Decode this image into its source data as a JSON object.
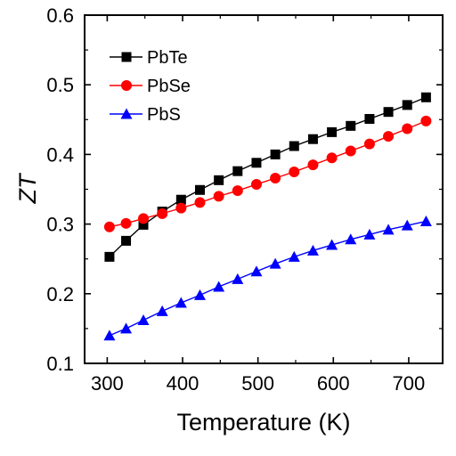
{
  "chart_data": {
    "type": "line",
    "xlabel": "Temperature (K)",
    "ylabel": "ZT",
    "xlim": [
      270,
      745
    ],
    "ylim": [
      0.1,
      0.6
    ],
    "xticks": [
      "300",
      "400",
      "500",
      "600",
      "700"
    ],
    "yticks": [
      "0.1",
      "0.2",
      "0.3",
      "0.4",
      "0.5",
      "0.6"
    ],
    "grid": false,
    "legend_position": "top-left",
    "x": [
      303,
      325,
      348,
      373,
      398,
      423,
      448,
      473,
      498,
      523,
      548,
      573,
      598,
      623,
      648,
      673,
      698,
      723
    ],
    "series": [
      {
        "name": "PbTe",
        "marker": "square",
        "color": "#000000",
        "values": [
          0.253,
          0.276,
          0.299,
          0.318,
          0.335,
          0.349,
          0.363,
          0.376,
          0.388,
          0.4,
          0.412,
          0.422,
          0.432,
          0.441,
          0.451,
          0.461,
          0.471,
          0.482
        ]
      },
      {
        "name": "PbSe",
        "marker": "circle",
        "color": "#ff0000",
        "values": [
          0.296,
          0.301,
          0.308,
          0.315,
          0.323,
          0.331,
          0.34,
          0.348,
          0.357,
          0.366,
          0.375,
          0.385,
          0.395,
          0.405,
          0.415,
          0.426,
          0.437,
          0.448
        ]
      },
      {
        "name": "PbS",
        "marker": "triangle",
        "color": "#0000ff",
        "values": [
          0.14,
          0.15,
          0.162,
          0.175,
          0.187,
          0.198,
          0.21,
          0.221,
          0.232,
          0.243,
          0.253,
          0.262,
          0.27,
          0.278,
          0.285,
          0.292,
          0.298,
          0.304
        ]
      }
    ]
  }
}
